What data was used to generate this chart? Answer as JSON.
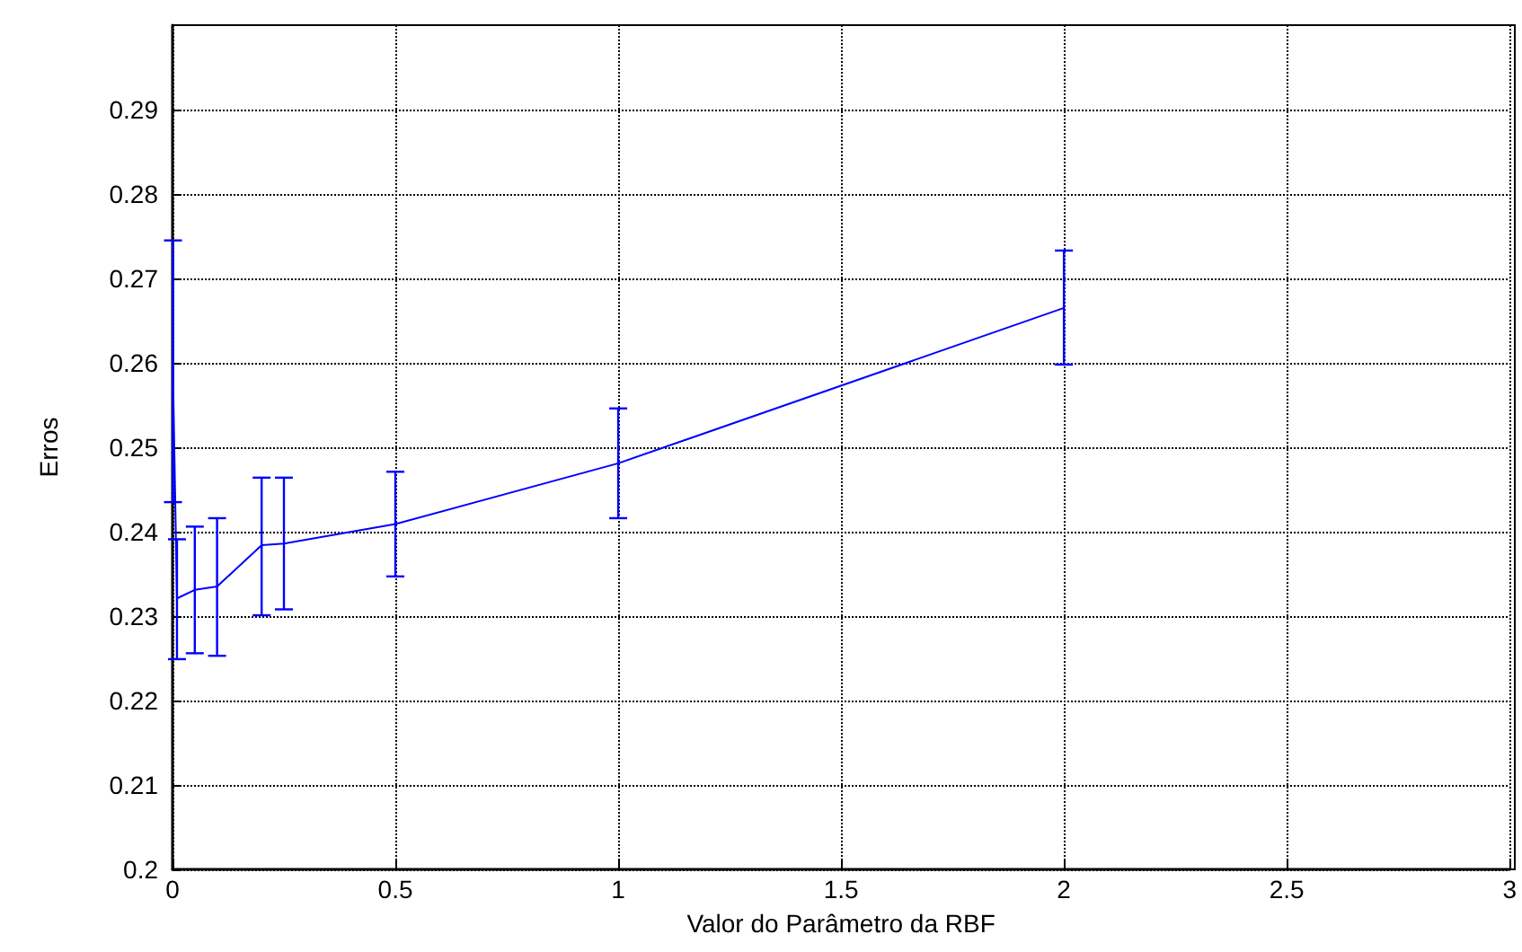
{
  "chart_data": {
    "type": "line",
    "xlabel": "Valor do Parâmetro da RBF",
    "ylabel": "Erros",
    "x": [
      0.001,
      0.01,
      0.05,
      0.1,
      0.2,
      0.25,
      0.5,
      1,
      2
    ],
    "series": [
      {
        "color": "#0000ff",
        "values": [
          0.259,
          0.2321,
          0.2331,
          0.2335,
          0.2384,
          0.2386,
          0.2409,
          0.2481,
          0.2665
        ],
        "errors": [
          [
            0.2435,
            0.2745
          ],
          [
            0.2249,
            0.2391
          ],
          [
            0.2256,
            0.2406
          ],
          [
            0.2253,
            0.2416
          ],
          [
            0.2301,
            0.2464
          ],
          [
            0.2308,
            0.2464
          ],
          [
            0.2347,
            0.2471
          ],
          [
            0.2416,
            0.2546
          ],
          [
            0.2598,
            0.2733
          ]
        ]
      }
    ],
    "xlim": [
      0,
      3
    ],
    "xticks": [
      0,
      0.5,
      1,
      1.5,
      2,
      2.5,
      3
    ],
    "ylim": [
      0.2,
      0.3
    ],
    "yticks": [
      0.2,
      0.21,
      0.22,
      0.23,
      0.24,
      0.25,
      0.26,
      0.27,
      0.28,
      0.29
    ],
    "grid": true,
    "marker": "none",
    "line_style": "solid"
  }
}
